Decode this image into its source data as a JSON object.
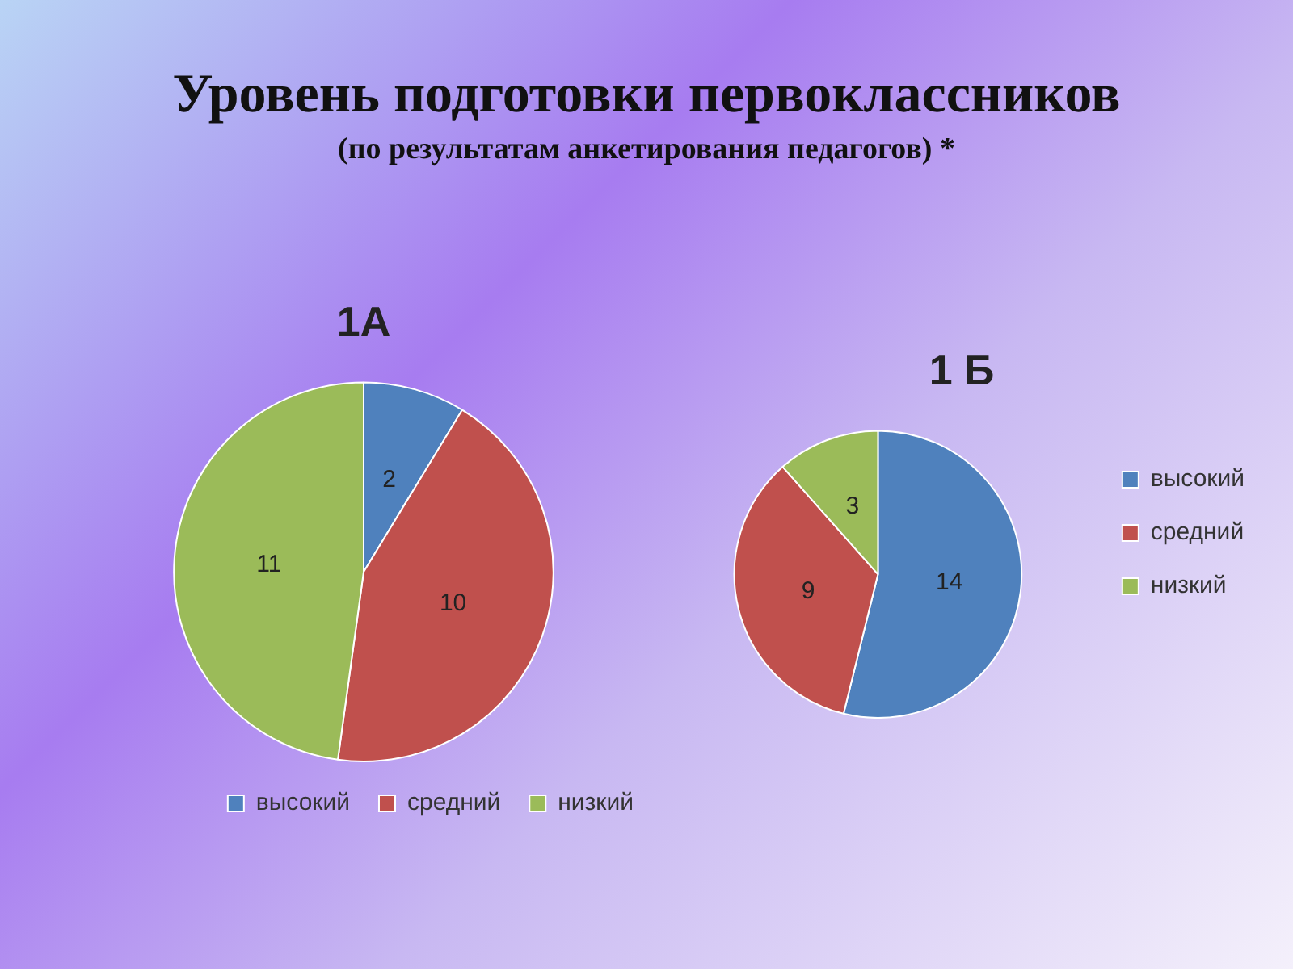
{
  "chart_data": [
    {
      "type": "other",
      "title": "Уровень подготовки первоклассников",
      "subtitle": "(по результатам анкетирования педагогов) *"
    },
    {
      "type": "pie",
      "title": "1А",
      "categories": [
        "высокий",
        "средний",
        "низкий"
      ],
      "values": [
        2,
        10,
        11
      ],
      "colors": [
        "#4f81bd",
        "#c0504d",
        "#9bbb59"
      ],
      "data_labels": true,
      "legend": "bottom right"
    },
    {
      "type": "pie",
      "title": "1 Б",
      "categories": [
        "высокий",
        "средний",
        "низкий"
      ],
      "values": [
        14,
        9,
        3
      ],
      "colors": [
        "#4f81bd",
        "#c0504d",
        "#9bbb59"
      ],
      "data_labels": true,
      "legend": "right"
    }
  ]
}
